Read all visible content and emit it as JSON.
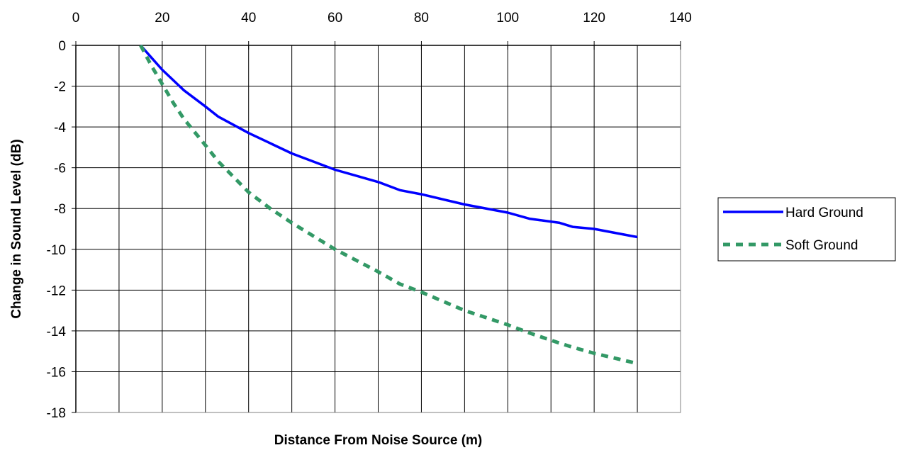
{
  "chart_data": {
    "type": "line",
    "xlabel": "Distance From Noise Source (m)",
    "ylabel": "Change in Sound Level (dB)",
    "xlim": [
      0,
      140
    ],
    "ylim": [
      -18,
      0
    ],
    "x_ticks": [
      "0",
      "20",
      "40",
      "60",
      "80",
      "100",
      "120",
      "140"
    ],
    "y_ticks": [
      "0",
      "-2",
      "-4",
      "-6",
      "-8",
      "-10",
      "-12",
      "-14",
      "-16",
      "-18"
    ],
    "x_axis_position": "top",
    "grid": true,
    "legend_position": "right",
    "series": [
      {
        "name": "Hard Ground",
        "color": "#0000ff",
        "style": "solid",
        "x": [
          15,
          17.5,
          20,
          22.5,
          25,
          30,
          33,
          40,
          45,
          50,
          60,
          70,
          75,
          80,
          90,
          100,
          105,
          112,
          115,
          120,
          130
        ],
        "y": [
          0,
          -0.6,
          -1.2,
          -1.7,
          -2.2,
          -3.0,
          -3.5,
          -4.3,
          -4.8,
          -5.3,
          -6.1,
          -6.7,
          -7.1,
          -7.3,
          -7.8,
          -8.2,
          -8.5,
          -8.7,
          -8.9,
          -9.0,
          -9.4
        ]
      },
      {
        "name": "Soft Ground",
        "color": "#339966",
        "style": "dashed",
        "x": [
          15,
          17.5,
          20,
          22.5,
          25,
          30,
          33,
          40,
          45,
          50,
          60,
          70,
          75,
          80,
          90,
          100,
          105,
          112,
          115,
          120,
          130
        ],
        "y": [
          0,
          -1.0,
          -1.9,
          -2.8,
          -3.6,
          -4.9,
          -5.7,
          -7.2,
          -8.0,
          -8.7,
          -10.0,
          -11.1,
          -11.7,
          -12.1,
          -13.0,
          -13.7,
          -14.1,
          -14.6,
          -14.8,
          -15.1,
          -15.6
        ]
      }
    ]
  }
}
